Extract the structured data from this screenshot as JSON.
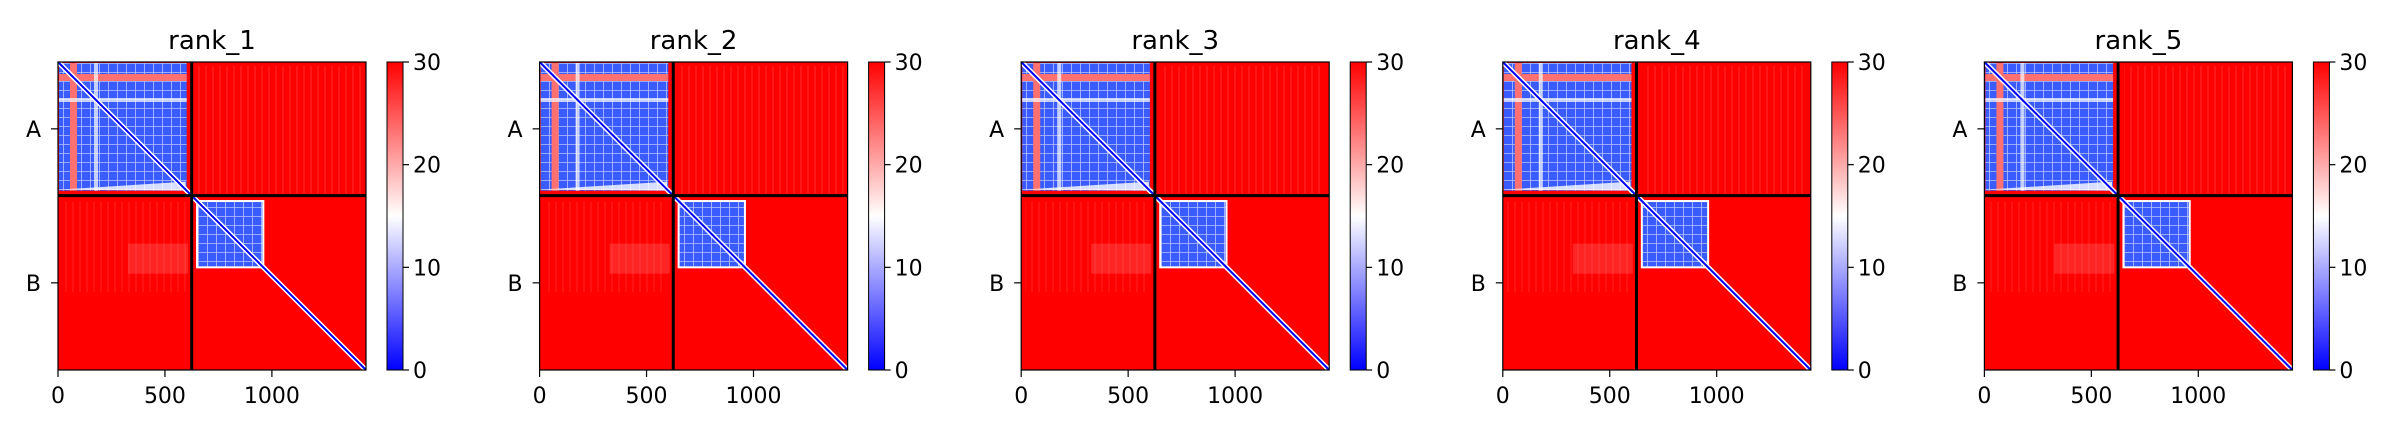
{
  "chart_data": [
    {
      "type": "heatmap",
      "title": "rank_1"
    },
    {
      "type": "heatmap",
      "title": "rank_2"
    },
    {
      "type": "heatmap",
      "title": "rank_3"
    },
    {
      "type": "heatmap",
      "title": "rank_4"
    },
    {
      "type": "heatmap",
      "title": "rank_5"
    }
  ],
  "shared": {
    "kind": "predicted aligned error matrix",
    "matrix_size": 1440,
    "chain_boundary": 625,
    "chains": [
      {
        "label": "A",
        "start": 0,
        "end": 625
      },
      {
        "label": "B",
        "start": 625,
        "end": 1440
      }
    ],
    "x_ticks": [
      0,
      500,
      1000
    ],
    "x_tick_labels": [
      "0",
      "500",
      "1000"
    ],
    "colorbar": {
      "min": 0,
      "max": 30,
      "ticks": [
        0,
        10,
        20,
        30
      ],
      "tick_labels": [
        "0",
        "10",
        "20",
        "30"
      ],
      "colormap": "bwr",
      "low_color": "#0000ff",
      "mid_color": "#ffffff",
      "high_color": "#ff0000"
    },
    "separator_color": "#000000",
    "grid": false
  }
}
